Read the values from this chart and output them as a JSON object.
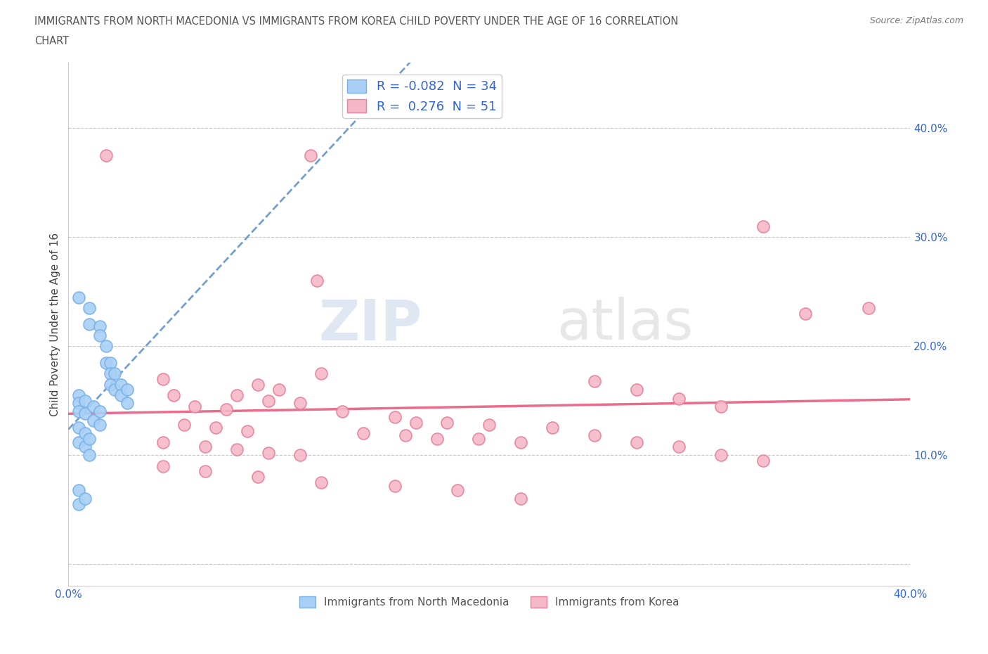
{
  "title_line1": "IMMIGRANTS FROM NORTH MACEDONIA VS IMMIGRANTS FROM KOREA CHILD POVERTY UNDER THE AGE OF 16 CORRELATION",
  "title_line2": "CHART",
  "source": "Source: ZipAtlas.com",
  "ylabel": "Child Poverty Under the Age of 16",
  "xlim": [
    0.0,
    0.4
  ],
  "ylim": [
    -0.02,
    0.46
  ],
  "ytick_vals": [
    0.0,
    0.1,
    0.2,
    0.3,
    0.4
  ],
  "xtick_vals": [
    0.0,
    0.1,
    0.2,
    0.3,
    0.4
  ],
  "color_macedonia": "#a8d0f5",
  "edge_macedonia": "#7ab0e8",
  "color_korea": "#f5b8c8",
  "edge_korea": "#e8809a",
  "line_color_macedonia": "#5b8fc9",
  "line_color_korea": "#e85c80",
  "R_macedonia": -0.082,
  "N_macedonia": 34,
  "R_korea": 0.276,
  "N_korea": 51,
  "watermark_zip": "ZIP",
  "watermark_atlas": "atlas",
  "legend_label_macedonia": "Immigrants from North Macedonia",
  "legend_label_korea": "Immigrants from Korea",
  "macedonia_points": [
    [
      0.005,
      0.245
    ],
    [
      0.01,
      0.235
    ],
    [
      0.01,
      0.22
    ],
    [
      0.015,
      0.218
    ],
    [
      0.015,
      0.21
    ],
    [
      0.018,
      0.2
    ],
    [
      0.018,
      0.185
    ],
    [
      0.02,
      0.185
    ],
    [
      0.02,
      0.175
    ],
    [
      0.02,
      0.165
    ],
    [
      0.022,
      0.175
    ],
    [
      0.022,
      0.16
    ],
    [
      0.025,
      0.165
    ],
    [
      0.025,
      0.155
    ],
    [
      0.028,
      0.16
    ],
    [
      0.028,
      0.148
    ],
    [
      0.005,
      0.155
    ],
    [
      0.005,
      0.148
    ],
    [
      0.005,
      0.14
    ],
    [
      0.008,
      0.15
    ],
    [
      0.008,
      0.138
    ],
    [
      0.012,
      0.145
    ],
    [
      0.012,
      0.132
    ],
    [
      0.015,
      0.14
    ],
    [
      0.015,
      0.128
    ],
    [
      0.005,
      0.125
    ],
    [
      0.005,
      0.112
    ],
    [
      0.008,
      0.12
    ],
    [
      0.008,
      0.108
    ],
    [
      0.01,
      0.115
    ],
    [
      0.01,
      0.1
    ],
    [
      0.005,
      0.068
    ],
    [
      0.005,
      0.055
    ],
    [
      0.008,
      0.06
    ]
  ],
  "korea_points": [
    [
      0.018,
      0.375
    ],
    [
      0.115,
      0.375
    ],
    [
      0.118,
      0.26
    ],
    [
      0.12,
      0.175
    ],
    [
      0.045,
      0.17
    ],
    [
      0.09,
      0.165
    ],
    [
      0.1,
      0.16
    ],
    [
      0.05,
      0.155
    ],
    [
      0.08,
      0.155
    ],
    [
      0.095,
      0.15
    ],
    [
      0.11,
      0.148
    ],
    [
      0.06,
      0.145
    ],
    [
      0.075,
      0.142
    ],
    [
      0.13,
      0.14
    ],
    [
      0.155,
      0.135
    ],
    [
      0.165,
      0.13
    ],
    [
      0.18,
      0.13
    ],
    [
      0.2,
      0.128
    ],
    [
      0.055,
      0.128
    ],
    [
      0.07,
      0.125
    ],
    [
      0.085,
      0.122
    ],
    [
      0.14,
      0.12
    ],
    [
      0.16,
      0.118
    ],
    [
      0.175,
      0.115
    ],
    [
      0.195,
      0.115
    ],
    [
      0.215,
      0.112
    ],
    [
      0.045,
      0.112
    ],
    [
      0.065,
      0.108
    ],
    [
      0.08,
      0.105
    ],
    [
      0.095,
      0.102
    ],
    [
      0.11,
      0.1
    ],
    [
      0.33,
      0.31
    ],
    [
      0.35,
      0.23
    ],
    [
      0.38,
      0.235
    ],
    [
      0.25,
      0.168
    ],
    [
      0.27,
      0.16
    ],
    [
      0.29,
      0.152
    ],
    [
      0.31,
      0.145
    ],
    [
      0.23,
      0.125
    ],
    [
      0.25,
      0.118
    ],
    [
      0.27,
      0.112
    ],
    [
      0.29,
      0.108
    ],
    [
      0.31,
      0.1
    ],
    [
      0.33,
      0.095
    ],
    [
      0.045,
      0.09
    ],
    [
      0.065,
      0.085
    ],
    [
      0.09,
      0.08
    ],
    [
      0.12,
      0.075
    ],
    [
      0.155,
      0.072
    ],
    [
      0.185,
      0.068
    ],
    [
      0.215,
      0.06
    ]
  ]
}
